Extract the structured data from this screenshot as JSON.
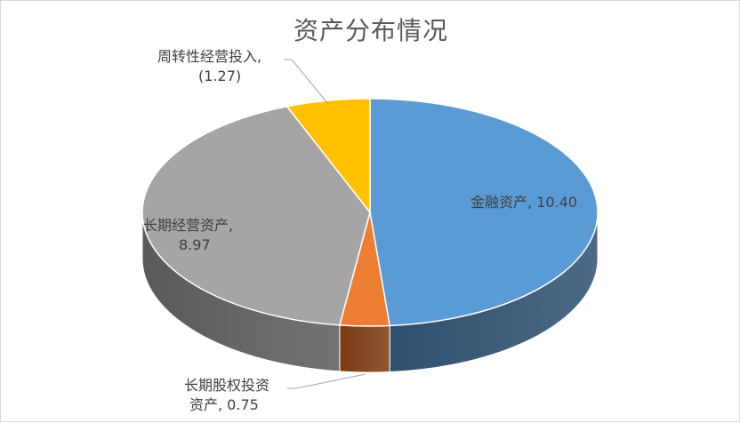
{
  "chart_data": {
    "type": "pie",
    "title": "资产分布情况",
    "slices": [
      {
        "name": "金融资产",
        "value": 10.4,
        "value_label": "10.40",
        "color": "#5b9bd5",
        "side_color": "#2e4f6f"
      },
      {
        "name": "长期股权投资资产",
        "value": 0.75,
        "value_label": "0.75",
        "color": "#ed7d31",
        "side_color": "#7a3a12"
      },
      {
        "name": "长期经营资产",
        "value": 8.97,
        "value_label": "8.97",
        "color": "#a5a5a5",
        "side_color": "#5a5a5a"
      },
      {
        "name": "周转性经营投入",
        "value": 1.27,
        "value_label": "(1.27)",
        "color": "#ffc000",
        "side_color": "#a07a00"
      }
    ],
    "labels": {
      "financial_assets": [
        "金融资产, 10.40"
      ],
      "equity_investment": [
        "长期股权投资",
        "资产, 0.75"
      ],
      "operating_assets": [
        "长期经营资产,",
        "8.97"
      ],
      "working_capital": [
        "周转性经营投入,",
        "(1.27)"
      ]
    }
  }
}
